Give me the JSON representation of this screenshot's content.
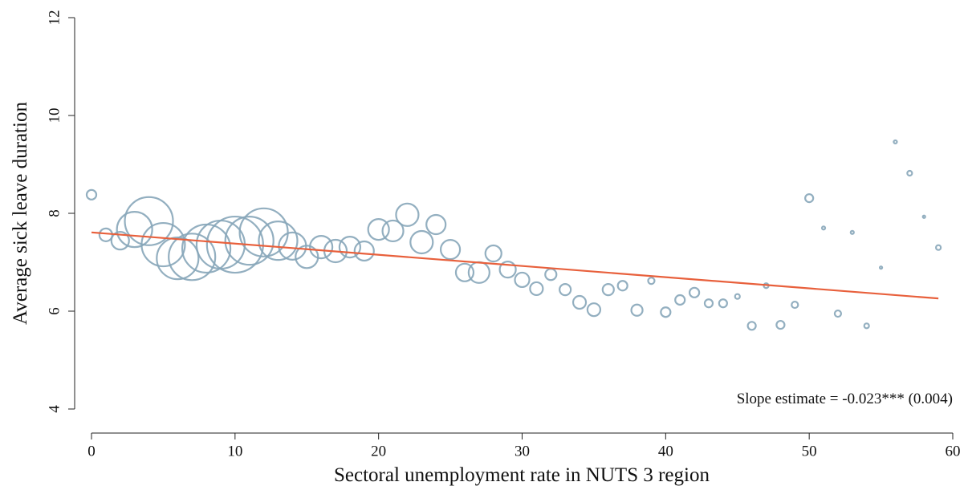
{
  "chart_data": {
    "type": "scatter",
    "x_label": "Sectoral unemployment rate in NUTS 3 region",
    "y_label": "Average sick leave duration",
    "annotation": "Slope estimate = -0.023*** (0.004)",
    "xlim": [
      0,
      60
    ],
    "ylim": [
      4,
      12
    ],
    "xticks": [
      0,
      10,
      20,
      30,
      40,
      50,
      60
    ],
    "yticks": [
      4,
      6,
      8,
      10,
      12
    ],
    "series": [
      {
        "color": "#87a6b9",
        "x": [
          0,
          1,
          2,
          3,
          4,
          5,
          6,
          7,
          8,
          9,
          10,
          11,
          12,
          13,
          14,
          15,
          16,
          17,
          18,
          19,
          20,
          21,
          22,
          23,
          24,
          25,
          26,
          27,
          28,
          29,
          30,
          31,
          32,
          33,
          34,
          35,
          36,
          37,
          38,
          39,
          40,
          41,
          42,
          43,
          44,
          45,
          46,
          47,
          48,
          49,
          50,
          51,
          52,
          53,
          54,
          55,
          56,
          57,
          58,
          59
        ],
        "values": [
          8.38,
          7.56,
          7.44,
          7.67,
          7.84,
          7.36,
          7.08,
          7.11,
          7.28,
          7.36,
          7.36,
          7.44,
          7.61,
          7.44,
          7.33,
          7.11,
          7.31,
          7.23,
          7.31,
          7.23,
          7.67,
          7.64,
          7.97,
          7.41,
          7.77,
          7.26,
          6.79,
          6.79,
          7.18,
          6.85,
          6.64,
          6.46,
          6.75,
          6.44,
          6.18,
          6.03,
          6.44,
          6.52,
          6.02,
          6.62,
          5.98,
          6.23,
          6.38,
          6.16,
          6.16,
          6.3,
          5.7,
          6.52,
          5.72,
          6.13,
          8.31,
          7.7,
          5.95,
          7.61,
          5.7,
          6.89,
          9.46,
          8.82,
          7.93,
          7.3
        ],
        "sizes": [
          6,
          8,
          11,
          22,
          30,
          27,
          26,
          29,
          30,
          30,
          35,
          30,
          30,
          24,
          17,
          14,
          14,
          14,
          13,
          12,
          13,
          13,
          14,
          14,
          12,
          12,
          11,
          13,
          10,
          10,
          9,
          8,
          7,
          7,
          8,
          8,
          7,
          6,
          7,
          4,
          6,
          6,
          6,
          5,
          5,
          3,
          5,
          3,
          5,
          4,
          5,
          2,
          4,
          2,
          3,
          1.5,
          2,
          3,
          1.5,
          3
        ]
      }
    ],
    "trend_line": {
      "color": "#e8603c",
      "x": [
        0,
        59
      ],
      "values": [
        7.61,
        6.26
      ]
    }
  }
}
